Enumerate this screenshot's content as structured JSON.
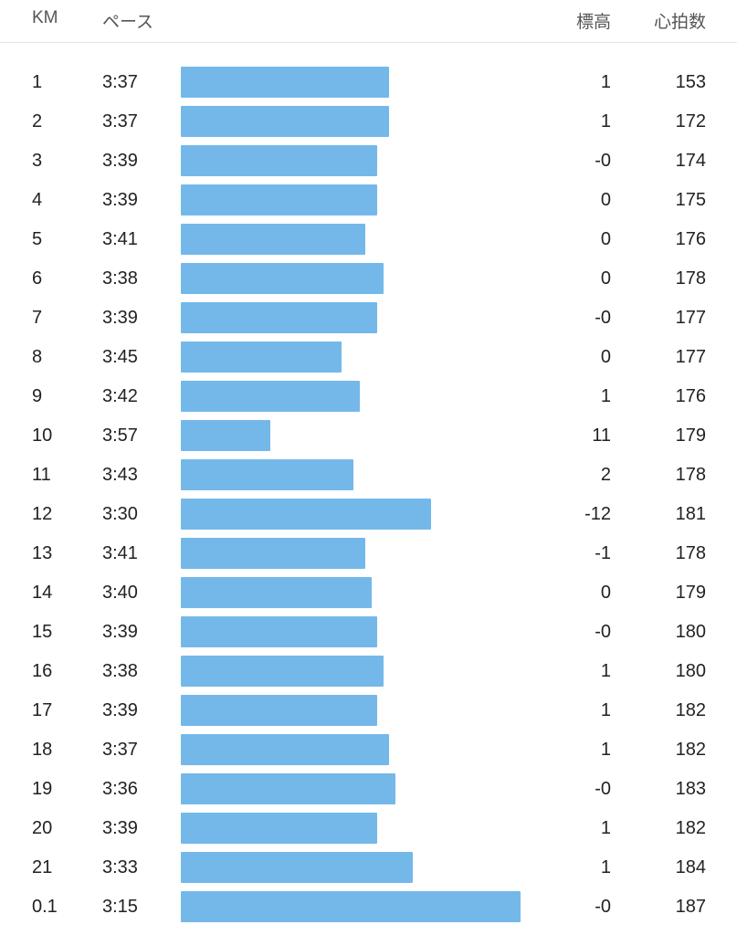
{
  "header": {
    "km": "KM",
    "pace": "ペース",
    "elevation": "標高",
    "heart_rate": "心拍数"
  },
  "colors": {
    "bar": "#74b8ea",
    "divider": "#e6e6e6"
  },
  "splits": [
    {
      "km": "1",
      "pace": "3:37",
      "pace_seconds": 217,
      "elevation": "1",
      "heart_rate": "153"
    },
    {
      "km": "2",
      "pace": "3:37",
      "pace_seconds": 217,
      "elevation": "1",
      "heart_rate": "172"
    },
    {
      "km": "3",
      "pace": "3:39",
      "pace_seconds": 219,
      "elevation": "-0",
      "heart_rate": "174"
    },
    {
      "km": "4",
      "pace": "3:39",
      "pace_seconds": 219,
      "elevation": "0",
      "heart_rate": "175"
    },
    {
      "km": "5",
      "pace": "3:41",
      "pace_seconds": 221,
      "elevation": "0",
      "heart_rate": "176"
    },
    {
      "km": "6",
      "pace": "3:38",
      "pace_seconds": 218,
      "elevation": "0",
      "heart_rate": "178"
    },
    {
      "km": "7",
      "pace": "3:39",
      "pace_seconds": 219,
      "elevation": "-0",
      "heart_rate": "177"
    },
    {
      "km": "8",
      "pace": "3:45",
      "pace_seconds": 225,
      "elevation": "0",
      "heart_rate": "177"
    },
    {
      "km": "9",
      "pace": "3:42",
      "pace_seconds": 222,
      "elevation": "1",
      "heart_rate": "176"
    },
    {
      "km": "10",
      "pace": "3:57",
      "pace_seconds": 237,
      "elevation": "11",
      "heart_rate": "179"
    },
    {
      "km": "11",
      "pace": "3:43",
      "pace_seconds": 223,
      "elevation": "2",
      "heart_rate": "178"
    },
    {
      "km": "12",
      "pace": "3:30",
      "pace_seconds": 210,
      "elevation": "-12",
      "heart_rate": "181"
    },
    {
      "km": "13",
      "pace": "3:41",
      "pace_seconds": 221,
      "elevation": "-1",
      "heart_rate": "178"
    },
    {
      "km": "14",
      "pace": "3:40",
      "pace_seconds": 220,
      "elevation": "0",
      "heart_rate": "179"
    },
    {
      "km": "15",
      "pace": "3:39",
      "pace_seconds": 219,
      "elevation": "-0",
      "heart_rate": "180"
    },
    {
      "km": "16",
      "pace": "3:38",
      "pace_seconds": 218,
      "elevation": "1",
      "heart_rate": "180"
    },
    {
      "km": "17",
      "pace": "3:39",
      "pace_seconds": 219,
      "elevation": "1",
      "heart_rate": "182"
    },
    {
      "km": "18",
      "pace": "3:37",
      "pace_seconds": 217,
      "elevation": "1",
      "heart_rate": "182"
    },
    {
      "km": "19",
      "pace": "3:36",
      "pace_seconds": 216,
      "elevation": "-0",
      "heart_rate": "183"
    },
    {
      "km": "20",
      "pace": "3:39",
      "pace_seconds": 219,
      "elevation": "1",
      "heart_rate": "182"
    },
    {
      "km": "21",
      "pace": "3:33",
      "pace_seconds": 213,
      "elevation": "1",
      "heart_rate": "184"
    },
    {
      "km": "0.1",
      "pace": "3:15",
      "pace_seconds": 195,
      "elevation": "-0",
      "heart_rate": "187"
    }
  ]
}
